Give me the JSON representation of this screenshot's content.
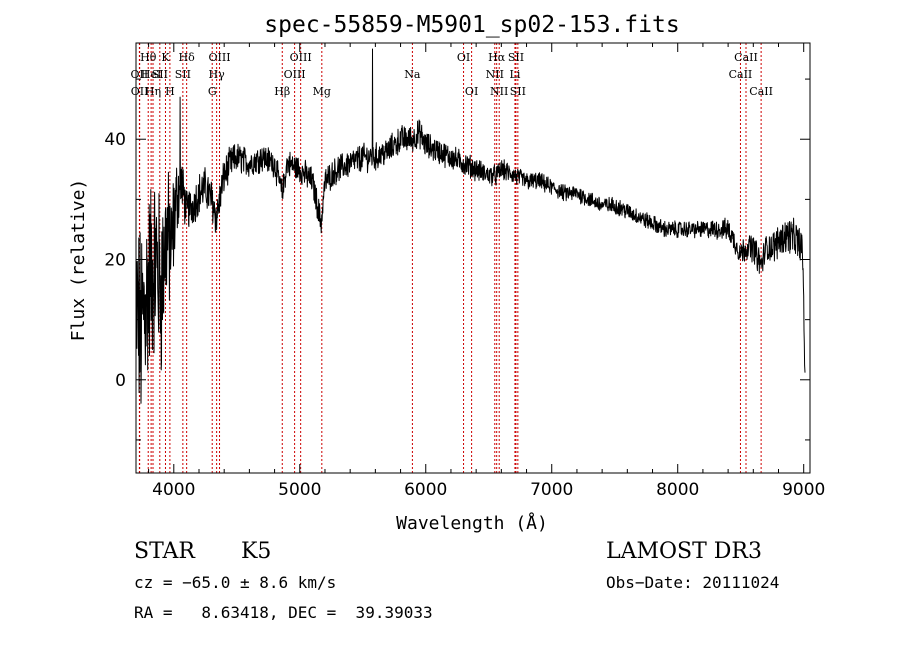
{
  "chart_data": {
    "type": "line",
    "title": "spec-55859-M5901_sp02-153.fits",
    "xlabel": "Wavelength (Å)",
    "ylabel": "Flux (relative)",
    "xlim": [
      3700,
      9050
    ],
    "ylim": [
      -15.5,
      56
    ],
    "x_ticks": [
      4000,
      5000,
      6000,
      7000,
      8000,
      9000
    ],
    "x_tick_labels": [
      "4000",
      "5000",
      "6000",
      "7000",
      "8000",
      "9000"
    ],
    "y_ticks": [
      0,
      20,
      40
    ],
    "y_tick_labels": [
      "0",
      "20",
      "40"
    ],
    "line_color": "#000000",
    "marker_color": "#cc0000",
    "spectrum_envelope": {
      "x": [
        3700,
        3740,
        3780,
        3820,
        3860,
        3900,
        3940,
        3980,
        4020,
        4060,
        4100,
        4150,
        4200,
        4250,
        4300,
        4340,
        4400,
        4450,
        4500,
        4600,
        4700,
        4800,
        4860,
        4900,
        5000,
        5100,
        5170,
        5200,
        5300,
        5400,
        5500,
        5600,
        5700,
        5800,
        5890,
        5950,
        6000,
        6100,
        6200,
        6300,
        6400,
        6500,
        6563,
        6600,
        6700,
        6800,
        6900,
        7000,
        7100,
        7200,
        7300,
        7400,
        7500,
        7600,
        7700,
        7800,
        7900,
        8000,
        8100,
        8200,
        8300,
        8400,
        8450,
        8500,
        8542,
        8600,
        8662,
        8700,
        8750,
        8800,
        8850,
        8900,
        8950,
        8990,
        9000,
        9010
      ],
      "y": [
        12,
        8,
        14,
        18,
        20,
        15,
        24,
        22,
        30,
        33,
        28,
        29,
        31,
        32,
        30,
        27,
        34,
        36,
        37,
        36,
        37,
        36,
        31,
        36,
        35,
        33,
        26,
        33,
        35,
        36,
        37,
        37,
        38,
        40,
        40,
        41,
        39,
        38,
        37,
        36,
        35,
        34,
        34,
        35,
        34,
        33,
        33,
        32,
        31,
        31,
        30,
        29,
        29,
        28,
        27,
        26,
        25,
        25,
        25,
        25,
        25,
        25,
        23,
        21,
        22,
        22,
        19,
        22,
        22,
        23,
        24,
        24,
        23,
        22,
        13,
        0
      ],
      "noise_amplitude": [
        14,
        15,
        15,
        14,
        13,
        13,
        11,
        9,
        6,
        4,
        3,
        3,
        3,
        3,
        3,
        3,
        2.6,
        2.4,
        2.2,
        2.0,
        2.0,
        2.0,
        2.0,
        2.0,
        2.0,
        2.0,
        2.0,
        2.0,
        2.0,
        2.0,
        2.0,
        2.0,
        2.0,
        2.0,
        2.0,
        2.0,
        2.0,
        1.8,
        1.8,
        1.7,
        1.6,
        1.5,
        1.5,
        1.5,
        1.4,
        1.3,
        1.3,
        1.2,
        1.2,
        1.2,
        1.2,
        1.2,
        1.2,
        1.2,
        1.2,
        1.2,
        1.2,
        1.2,
        1.2,
        1.2,
        1.4,
        1.6,
        1.7,
        1.8,
        1.8,
        2.0,
        2.0,
        2.0,
        2.2,
        2.4,
        2.5,
        2.6,
        2.6,
        2.6,
        2.0,
        1.0
      ]
    },
    "spikes": [
      {
        "x": 5577,
        "y": 55
      },
      {
        "x": 4050,
        "y": 47
      }
    ],
    "line_markers": [
      {
        "label": "Hθ",
        "x": 3797,
        "row": 1
      },
      {
        "label": "OII",
        "x": 3727,
        "row": 2
      },
      {
        "label": "OII",
        "x": 3729,
        "row": 3
      },
      {
        "label": "HeI",
        "x": 3820,
        "row": 2
      },
      {
        "label": "Hη",
        "x": 3835,
        "row": 3
      },
      {
        "label": "K",
        "x": 3934,
        "row": 1
      },
      {
        "label": "SII",
        "x": 3889,
        "row": 2
      },
      {
        "label": "H",
        "x": 3969,
        "row": 3
      },
      {
        "label": "Hδ",
        "x": 4102,
        "row": 1
      },
      {
        "label": "SII",
        "x": 4072,
        "row": 2
      },
      {
        "label": "OIII",
        "x": 4363,
        "row": 1
      },
      {
        "label": "Hγ",
        "x": 4340,
        "row": 2
      },
      {
        "label": "G",
        "x": 4305,
        "row": 3
      },
      {
        "label": "Hβ",
        "x": 4861,
        "row": 3
      },
      {
        "label": "OIII",
        "x": 5007,
        "row": 1
      },
      {
        "label": "OIII",
        "x": 4959,
        "row": 2
      },
      {
        "label": "Mg",
        "x": 5175,
        "row": 3
      },
      {
        "label": "Na",
        "x": 5894,
        "row": 2
      },
      {
        "label": "OI",
        "x": 6300,
        "row": 1
      },
      {
        "label": "OI",
        "x": 6364,
        "row": 3
      },
      {
        "label": "Hα",
        "x": 6563,
        "row": 1
      },
      {
        "label": "NII",
        "x": 6548,
        "row": 2
      },
      {
        "label": "NII",
        "x": 6583,
        "row": 3
      },
      {
        "label": "SII",
        "x": 6716,
        "row": 1
      },
      {
        "label": "Li",
        "x": 6708,
        "row": 2
      },
      {
        "label": "SII",
        "x": 6731,
        "row": 3
      },
      {
        "label": "CaII",
        "x": 8498,
        "row": 2
      },
      {
        "label": "CaII",
        "x": 8542,
        "row": 1
      },
      {
        "label": "CaII",
        "x": 8662,
        "row": 3
      }
    ]
  },
  "info": {
    "object_class": "STAR",
    "subclass": "K5",
    "survey": "LAMOST DR3",
    "cz": "cz = −65.0 ± 8.6 km/s",
    "obs_date": "Obs−Date: 20111024",
    "coords": "RA =   8.63418, DEC =  39.39033"
  }
}
